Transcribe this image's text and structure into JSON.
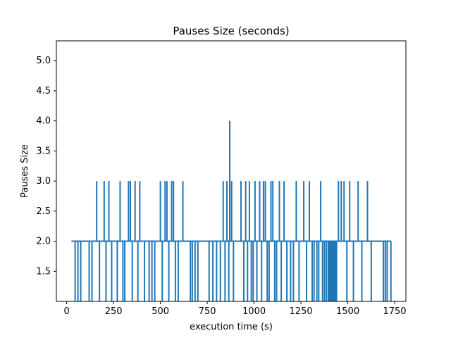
{
  "chart_data": {
    "type": "line",
    "title": "Pauses Size (seconds)",
    "xlabel": "execution time (s)",
    "ylabel": "Pauses Size",
    "xlim": [
      -55,
      1810
    ],
    "ylim": [
      1.0,
      5.33
    ],
    "xticks": [
      0,
      250,
      500,
      750,
      1000,
      1250,
      1500,
      1750
    ],
    "yticks": [
      1.5,
      2.0,
      2.5,
      3.0,
      3.5,
      4.0,
      4.5,
      5.0
    ],
    "grid": false,
    "color": "#1f77b4",
    "baseline": 2.0,
    "x_start": 25,
    "x_end": 1730,
    "series": [
      {
        "name": "",
        "spikes": [
          {
            "x": 45,
            "y": 1
          },
          {
            "x": 60,
            "y": 1
          },
          {
            "x": 75,
            "y": 1
          },
          {
            "x": 120,
            "y": 1
          },
          {
            "x": 135,
            "y": 1
          },
          {
            "x": 160,
            "y": 3
          },
          {
            "x": 175,
            "y": 1
          },
          {
            "x": 200,
            "y": 3
          },
          {
            "x": 210,
            "y": 1
          },
          {
            "x": 225,
            "y": 3
          },
          {
            "x": 240,
            "y": 1
          },
          {
            "x": 270,
            "y": 1
          },
          {
            "x": 285,
            "y": 3
          },
          {
            "x": 300,
            "y": 1
          },
          {
            "x": 310,
            "y": 1
          },
          {
            "x": 330,
            "y": 3
          },
          {
            "x": 340,
            "y": 3
          },
          {
            "x": 350,
            "y": 1
          },
          {
            "x": 365,
            "y": 3
          },
          {
            "x": 380,
            "y": 1
          },
          {
            "x": 390,
            "y": 3
          },
          {
            "x": 415,
            "y": 1
          },
          {
            "x": 440,
            "y": 1
          },
          {
            "x": 455,
            "y": 1
          },
          {
            "x": 470,
            "y": 1
          },
          {
            "x": 500,
            "y": 3
          },
          {
            "x": 510,
            "y": 1
          },
          {
            "x": 525,
            "y": 3
          },
          {
            "x": 535,
            "y": 3
          },
          {
            "x": 545,
            "y": 1
          },
          {
            "x": 560,
            "y": 3
          },
          {
            "x": 570,
            "y": 3
          },
          {
            "x": 580,
            "y": 1
          },
          {
            "x": 595,
            "y": 1
          },
          {
            "x": 620,
            "y": 3
          },
          {
            "x": 660,
            "y": 1
          },
          {
            "x": 670,
            "y": 1
          },
          {
            "x": 685,
            "y": 1
          },
          {
            "x": 700,
            "y": 1
          },
          {
            "x": 760,
            "y": 1
          },
          {
            "x": 780,
            "y": 1
          },
          {
            "x": 800,
            "y": 1
          },
          {
            "x": 820,
            "y": 1
          },
          {
            "x": 835,
            "y": 3
          },
          {
            "x": 845,
            "y": 1
          },
          {
            "x": 855,
            "y": 3
          },
          {
            "x": 865,
            "y": 1
          },
          {
            "x": 870,
            "y": 4
          },
          {
            "x": 880,
            "y": 3
          },
          {
            "x": 890,
            "y": 1
          },
          {
            "x": 930,
            "y": 3
          },
          {
            "x": 945,
            "y": 1
          },
          {
            "x": 955,
            "y": 3
          },
          {
            "x": 965,
            "y": 1
          },
          {
            "x": 975,
            "y": 3
          },
          {
            "x": 985,
            "y": 1
          },
          {
            "x": 995,
            "y": 1
          },
          {
            "x": 1005,
            "y": 3
          },
          {
            "x": 1015,
            "y": 1
          },
          {
            "x": 1030,
            "y": 3
          },
          {
            "x": 1040,
            "y": 1
          },
          {
            "x": 1050,
            "y": 3
          },
          {
            "x": 1060,
            "y": 3
          },
          {
            "x": 1070,
            "y": 1
          },
          {
            "x": 1080,
            "y": 1
          },
          {
            "x": 1090,
            "y": 3
          },
          {
            "x": 1100,
            "y": 3
          },
          {
            "x": 1110,
            "y": 1
          },
          {
            "x": 1120,
            "y": 1
          },
          {
            "x": 1135,
            "y": 3
          },
          {
            "x": 1145,
            "y": 1
          },
          {
            "x": 1160,
            "y": 3
          },
          {
            "x": 1175,
            "y": 1
          },
          {
            "x": 1195,
            "y": 1
          },
          {
            "x": 1210,
            "y": 1
          },
          {
            "x": 1225,
            "y": 3
          },
          {
            "x": 1240,
            "y": 1
          },
          {
            "x": 1265,
            "y": 3
          },
          {
            "x": 1280,
            "y": 1
          },
          {
            "x": 1295,
            "y": 3
          },
          {
            "x": 1310,
            "y": 1
          },
          {
            "x": 1320,
            "y": 1
          },
          {
            "x": 1335,
            "y": 1
          },
          {
            "x": 1345,
            "y": 1
          },
          {
            "x": 1355,
            "y": 3
          },
          {
            "x": 1365,
            "y": 1
          },
          {
            "x": 1375,
            "y": 1
          },
          {
            "x": 1385,
            "y": 1
          },
          {
            "x": 1395,
            "y": 1
          },
          {
            "x": 1400,
            "y": 1
          },
          {
            "x": 1405,
            "y": 1
          },
          {
            "x": 1410,
            "y": 1
          },
          {
            "x": 1415,
            "y": 1
          },
          {
            "x": 1420,
            "y": 1
          },
          {
            "x": 1425,
            "y": 1
          },
          {
            "x": 1430,
            "y": 1
          },
          {
            "x": 1435,
            "y": 1
          },
          {
            "x": 1440,
            "y": 1
          },
          {
            "x": 1450,
            "y": 3
          },
          {
            "x": 1465,
            "y": 3
          },
          {
            "x": 1480,
            "y": 3
          },
          {
            "x": 1495,
            "y": 1
          },
          {
            "x": 1510,
            "y": 3
          },
          {
            "x": 1530,
            "y": 1
          },
          {
            "x": 1555,
            "y": 3
          },
          {
            "x": 1575,
            "y": 1
          },
          {
            "x": 1605,
            "y": 3
          },
          {
            "x": 1625,
            "y": 1
          },
          {
            "x": 1690,
            "y": 1
          },
          {
            "x": 1700,
            "y": 1
          },
          {
            "x": 1710,
            "y": 1
          }
        ]
      }
    ]
  }
}
